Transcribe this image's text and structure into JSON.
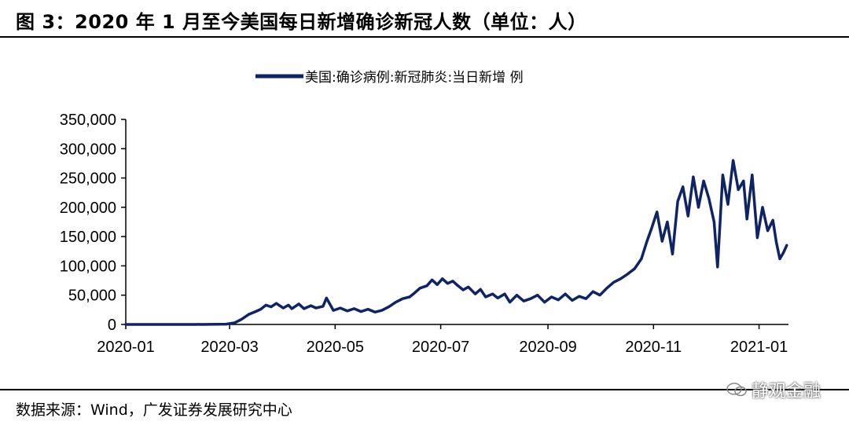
{
  "header": {
    "title": "图 3：2020 年 1 月至今美国每日新增确诊新冠人数（单位：人）"
  },
  "footer": {
    "source": "数据来源：Wind，广发证券发展研究中心",
    "watermark": "静观金融"
  },
  "colors": {
    "series": "#0f2465",
    "axis": "#000000"
  },
  "chart_data": {
    "type": "line",
    "title": "",
    "xlabel": "",
    "ylabel": "",
    "ylim": [
      0,
      350000
    ],
    "yticks": [
      "350,000",
      "300,000",
      "250,000",
      "200,000",
      "150,000",
      "100,000",
      "50,000",
      "0"
    ],
    "ytick_values": [
      350000,
      300000,
      250000,
      200000,
      150000,
      100000,
      50000,
      0
    ],
    "xticks": [
      "2020-01",
      "2020-03",
      "2020-05",
      "2020-07",
      "2020-09",
      "2020-11",
      "2021-01"
    ],
    "xtick_dates": [
      "2020-01-01",
      "2020-03-01",
      "2020-05-01",
      "2020-07-01",
      "2020-09-01",
      "2020-11-01",
      "2021-01-01"
    ],
    "xlim": [
      "2020-01-01",
      "2021-01-18"
    ],
    "grid": false,
    "legend_position": "top-center",
    "series": [
      {
        "name": "美国:确诊病例:新冠肺炎:当日新增 例",
        "x": [
          "2020-01-01",
          "2020-01-20",
          "2020-02-10",
          "2020-02-28",
          "2020-03-04",
          "2020-03-08",
          "2020-03-12",
          "2020-03-16",
          "2020-03-19",
          "2020-03-22",
          "2020-03-25",
          "2020-03-28",
          "2020-04-01",
          "2020-04-04",
          "2020-04-06",
          "2020-04-10",
          "2020-04-13",
          "2020-04-17",
          "2020-04-20",
          "2020-04-24",
          "2020-04-26",
          "2020-04-30",
          "2020-05-04",
          "2020-05-08",
          "2020-05-12",
          "2020-05-16",
          "2020-05-20",
          "2020-05-24",
          "2020-05-28",
          "2020-06-01",
          "2020-06-05",
          "2020-06-09",
          "2020-06-13",
          "2020-06-16",
          "2020-06-19",
          "2020-06-23",
          "2020-06-26",
          "2020-06-29",
          "2020-07-02",
          "2020-07-05",
          "2020-07-08",
          "2020-07-11",
          "2020-07-14",
          "2020-07-17",
          "2020-07-21",
          "2020-07-24",
          "2020-07-27",
          "2020-07-31",
          "2020-08-03",
          "2020-08-07",
          "2020-08-10",
          "2020-08-14",
          "2020-08-18",
          "2020-08-22",
          "2020-08-26",
          "2020-08-30",
          "2020-09-03",
          "2020-09-07",
          "2020-09-11",
          "2020-09-15",
          "2020-09-19",
          "2020-09-23",
          "2020-09-27",
          "2020-10-01",
          "2020-10-05",
          "2020-10-09",
          "2020-10-13",
          "2020-10-17",
          "2020-10-21",
          "2020-10-25",
          "2020-10-28",
          "2020-10-31",
          "2020-11-03",
          "2020-11-06",
          "2020-11-09",
          "2020-11-12",
          "2020-11-15",
          "2020-11-18",
          "2020-11-21",
          "2020-11-24",
          "2020-11-27",
          "2020-11-30",
          "2020-12-03",
          "2020-12-06",
          "2020-12-08",
          "2020-12-11",
          "2020-12-14",
          "2020-12-17",
          "2020-12-20",
          "2020-12-23",
          "2020-12-25",
          "2020-12-28",
          "2020-12-31",
          "2021-01-03",
          "2021-01-06",
          "2021-01-09",
          "2021-01-11",
          "2021-01-13",
          "2021-01-15",
          "2021-01-17"
        ],
        "values": [
          0,
          0,
          0,
          500,
          3000,
          9000,
          17000,
          22000,
          26000,
          33000,
          30000,
          36000,
          28000,
          33000,
          27000,
          35000,
          27000,
          32000,
          28000,
          31000,
          45000,
          24000,
          28000,
          23000,
          27000,
          22000,
          26000,
          21000,
          24000,
          30000,
          38000,
          44000,
          47000,
          54000,
          62000,
          66000,
          76000,
          68000,
          78000,
          70000,
          74000,
          66000,
          59000,
          64000,
          52000,
          60000,
          47000,
          52000,
          45000,
          52000,
          38000,
          50000,
          40000,
          44000,
          50000,
          38000,
          47000,
          42000,
          52000,
          41000,
          48000,
          44000,
          56000,
          50000,
          62000,
          72000,
          78000,
          86000,
          95000,
          112000,
          140000,
          165000,
          192000,
          142000,
          175000,
          120000,
          210000,
          235000,
          185000,
          252000,
          200000,
          245000,
          215000,
          175000,
          98000,
          255000,
          205000,
          280000,
          230000,
          245000,
          180000,
          255000,
          148000,
          200000,
          160000,
          178000,
          140000,
          112000,
          122000,
          135000
        ]
      }
    ]
  }
}
